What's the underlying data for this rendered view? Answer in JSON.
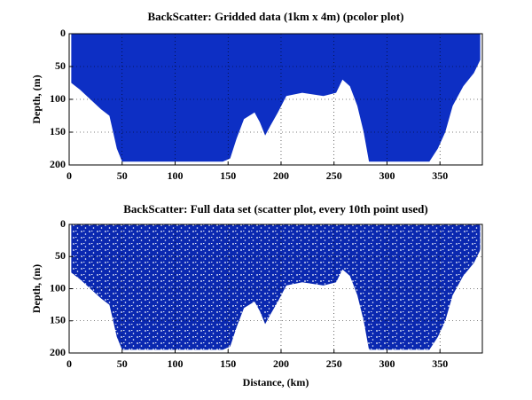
{
  "chart_data": [
    {
      "type": "pcolor",
      "title": "BackScatter: Gridded data (1km x 4m) (pcolor plot)",
      "ylabel": "Depth, (m)",
      "x": [
        2,
        10,
        20,
        30,
        38,
        45,
        50,
        100,
        145,
        152,
        158,
        165,
        175,
        180,
        185,
        190,
        197,
        205,
        220,
        240,
        252,
        258,
        265,
        272,
        278,
        283,
        340,
        348,
        355,
        362,
        372,
        382,
        388
      ],
      "values": [
        75,
        85,
        100,
        115,
        125,
        175,
        195,
        195,
        195,
        190,
        160,
        130,
        120,
        135,
        155,
        140,
        120,
        95,
        90,
        95,
        90,
        70,
        80,
        110,
        150,
        195,
        195,
        175,
        150,
        110,
        80,
        60,
        40
      ],
      "color": "#0d2fc4",
      "xlim": [
        0,
        390
      ],
      "ylim": [
        0,
        200
      ],
      "y_reversed": true,
      "xticks": [
        0,
        50,
        100,
        150,
        200,
        250,
        300,
        350
      ],
      "yticks": [
        0,
        50,
        100,
        150,
        200
      ],
      "grid": true
    },
    {
      "type": "scatter",
      "title": "BackScatter: Full data set (scatter plot, every 10th point used)",
      "ylabel": "Depth, (m)",
      "xlabel": "Distance, (km)",
      "x": [
        2,
        10,
        20,
        30,
        38,
        45,
        50,
        100,
        145,
        152,
        158,
        165,
        175,
        180,
        185,
        190,
        197,
        205,
        220,
        240,
        252,
        258,
        265,
        272,
        278,
        283,
        340,
        348,
        355,
        362,
        372,
        382,
        388
      ],
      "values": [
        75,
        85,
        100,
        115,
        125,
        175,
        195,
        195,
        195,
        190,
        160,
        130,
        120,
        135,
        155,
        140,
        120,
        95,
        90,
        95,
        90,
        70,
        80,
        110,
        150,
        195,
        195,
        175,
        150,
        110,
        80,
        60,
        40
      ],
      "color": "#0a28b0",
      "xlim": [
        0,
        390
      ],
      "ylim": [
        0,
        200
      ],
      "y_reversed": true,
      "xticks": [
        0,
        50,
        100,
        150,
        200,
        250,
        300,
        350
      ],
      "yticks": [
        0,
        50,
        100,
        150,
        200
      ],
      "grid": true
    }
  ]
}
